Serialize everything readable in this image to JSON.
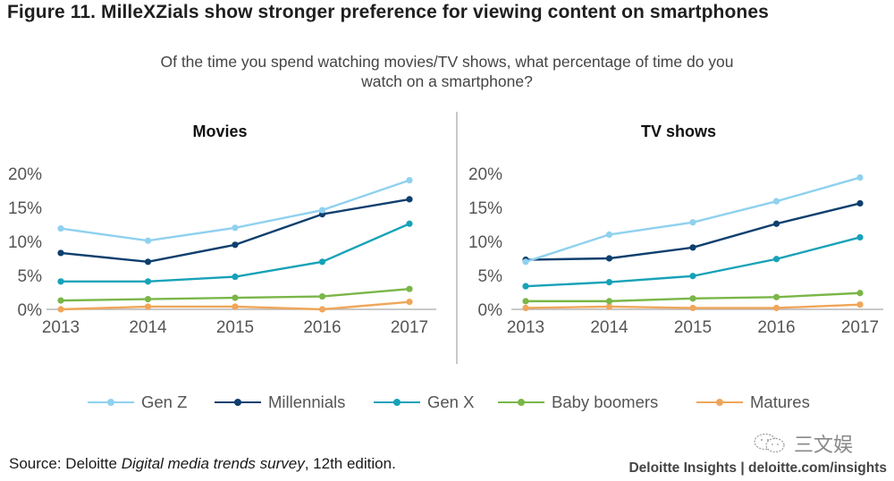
{
  "figure": {
    "title": "Figure 11. MilleXZials show stronger preference for viewing content on smartphones",
    "subtitle_line1": "Of the time you spend watching movies/TV shows, what percentage of time do you",
    "subtitle_line2": "watch on a smartphone?",
    "source_prefix": "Source: Deloitte ",
    "source_italic": "Digital media trends survey",
    "source_suffix": ", 12th edition.",
    "footer": "Deloitte Insights | deloitte.com/insights",
    "watermark_text": "三文娱",
    "watermark_icon": "wechat-icon"
  },
  "series_colors": {
    "Gen Z": "#8fd1ef",
    "Millennials": "#0e3f6e",
    "Gen X": "#17a2b8",
    "Baby boomers": "#7ab648",
    "Matures": "#f0a65a"
  },
  "chart_data": [
    {
      "type": "line",
      "title": "Movies",
      "xlabel": "",
      "ylabel": "",
      "x": [
        "2013",
        "2014",
        "2015",
        "2016",
        "2017"
      ],
      "ylim": [
        0,
        20
      ],
      "yticks": [
        "0%",
        "5%",
        "10%",
        "15%",
        "20%"
      ],
      "grid": false,
      "legend": "bottom",
      "series": [
        {
          "name": "Gen Z",
          "values": [
            11.9,
            10.1,
            12.0,
            14.6,
            19.0
          ]
        },
        {
          "name": "Millennials",
          "values": [
            8.3,
            7.0,
            9.5,
            14.0,
            16.2
          ]
        },
        {
          "name": "Gen X",
          "values": [
            4.1,
            4.1,
            4.8,
            7.0,
            12.6
          ]
        },
        {
          "name": "Baby boomers",
          "values": [
            1.3,
            1.5,
            1.7,
            1.9,
            3.0
          ]
        },
        {
          "name": "Matures",
          "values": [
            0.0,
            0.4,
            0.4,
            0.0,
            1.1
          ]
        }
      ]
    },
    {
      "type": "line",
      "title": "TV shows",
      "xlabel": "",
      "ylabel": "",
      "x": [
        "2013",
        "2014",
        "2015",
        "2016",
        "2017"
      ],
      "ylim": [
        0,
        20
      ],
      "yticks": [
        "0%",
        "5%",
        "10%",
        "15%",
        "20%"
      ],
      "grid": false,
      "legend": "bottom",
      "series": [
        {
          "name": "Gen Z",
          "values": [
            7.0,
            11.0,
            12.8,
            15.9,
            19.4
          ]
        },
        {
          "name": "Millennials",
          "values": [
            7.3,
            7.5,
            9.1,
            12.6,
            15.6
          ]
        },
        {
          "name": "Gen X",
          "values": [
            3.4,
            4.0,
            4.9,
            7.4,
            10.6
          ]
        },
        {
          "name": "Baby boomers",
          "values": [
            1.2,
            1.2,
            1.6,
            1.8,
            2.4
          ]
        },
        {
          "name": "Matures",
          "values": [
            0.2,
            0.4,
            0.2,
            0.2,
            0.7
          ]
        }
      ]
    }
  ],
  "legend": [
    {
      "label": "Gen Z"
    },
    {
      "label": "Millennials"
    },
    {
      "label": "Gen X"
    },
    {
      "label": "Baby boomers"
    },
    {
      "label": "Matures"
    }
  ]
}
